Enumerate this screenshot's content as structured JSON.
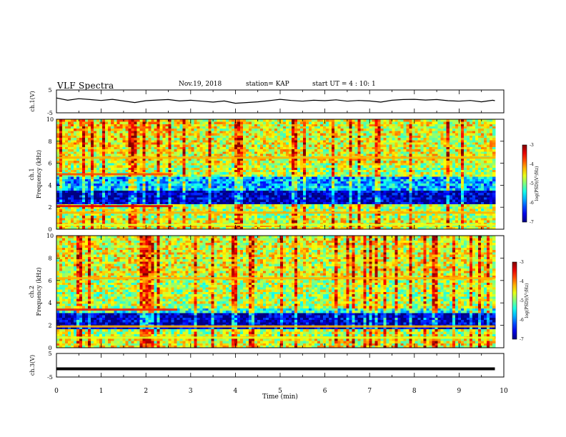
{
  "header": {
    "title": "VLF Spectra",
    "date": "Nov.19, 2018",
    "station": "station= KAP",
    "start": "start  UT =   4 : 10: 1"
  },
  "chart_data": [
    {
      "type": "line",
      "panel": "ch1-voltage",
      "ylabel": "ch.1(V)",
      "ylim": [
        -5,
        5
      ],
      "yticks": [
        "5",
        "-5"
      ],
      "xlim": [
        0,
        10
      ],
      "x_min": [
        0,
        0.25,
        0.5,
        0.75,
        1,
        1.25,
        1.5,
        1.75,
        2,
        2.25,
        2.5,
        2.75,
        3,
        3.25,
        3.5,
        3.75,
        4,
        4.25,
        4.5,
        4.75,
        5,
        5.25,
        5.5,
        5.75,
        6,
        6.25,
        6.5,
        6.75,
        7,
        7.25,
        7.5,
        7.75,
        8,
        8.25,
        8.5,
        8.75,
        9,
        9.25,
        9.5,
        9.75,
        9.8
      ],
      "y_volts": [
        1.5,
        0.5,
        1.2,
        0.8,
        0.4,
        0.9,
        0.2,
        -0.5,
        0.3,
        0.6,
        0.8,
        0.2,
        0.5,
        0.1,
        -0.3,
        0.2,
        -0.8,
        -0.5,
        -0.2,
        0.3,
        0.9,
        0.4,
        0.1,
        0.5,
        0.3,
        0.7,
        0.1,
        0.4,
        0.2,
        -0.3,
        0.5,
        0.8,
        0.9,
        0.6,
        0.8,
        0.3,
        0.1,
        0.4,
        -0.2,
        0.5,
        0.3
      ]
    },
    {
      "type": "heatmap",
      "panel": "ch1-spectrogram",
      "ylabel": "ch.1",
      "ylabel2": "Frequency (kHz)",
      "ylim": [
        0,
        10
      ],
      "yticks": [
        "0",
        "2",
        "4",
        "6",
        "8",
        "10"
      ],
      "xlim": [
        0,
        10
      ],
      "colorbar": {
        "label": "log(PSD)(V²/Hz)",
        "range": [
          -7,
          -3
        ],
        "ticks": [
          "-3",
          "-4",
          "-5",
          "-6",
          "-7"
        ]
      }
    },
    {
      "type": "heatmap",
      "panel": "ch2-spectrogram",
      "ylabel": "ch.2",
      "ylabel2": "Frequency (kHz)",
      "ylim": [
        0,
        10
      ],
      "yticks": [
        "0",
        "2",
        "4",
        "6",
        "8",
        "10"
      ],
      "xlim": [
        0,
        10
      ],
      "colorbar": {
        "label": "log(PSD)(V²/Hz)",
        "range": [
          -7,
          -3
        ],
        "ticks": [
          "-3",
          "-4",
          "-5",
          "-6",
          "-7"
        ]
      }
    },
    {
      "type": "line",
      "panel": "ch3-voltage",
      "ylabel": "ch.3(V)",
      "ylim": [
        -5,
        5
      ],
      "yticks": [
        "5",
        "-5"
      ],
      "xlim": [
        0,
        10
      ],
      "x_min": [
        0,
        9.8
      ],
      "y_volts": [
        -1.5,
        -1.5
      ]
    }
  ],
  "xaxis": {
    "label": "Time  (min)",
    "ticks": [
      "0",
      "1",
      "2",
      "3",
      "4",
      "5",
      "6",
      "7",
      "8",
      "9",
      "10"
    ]
  }
}
